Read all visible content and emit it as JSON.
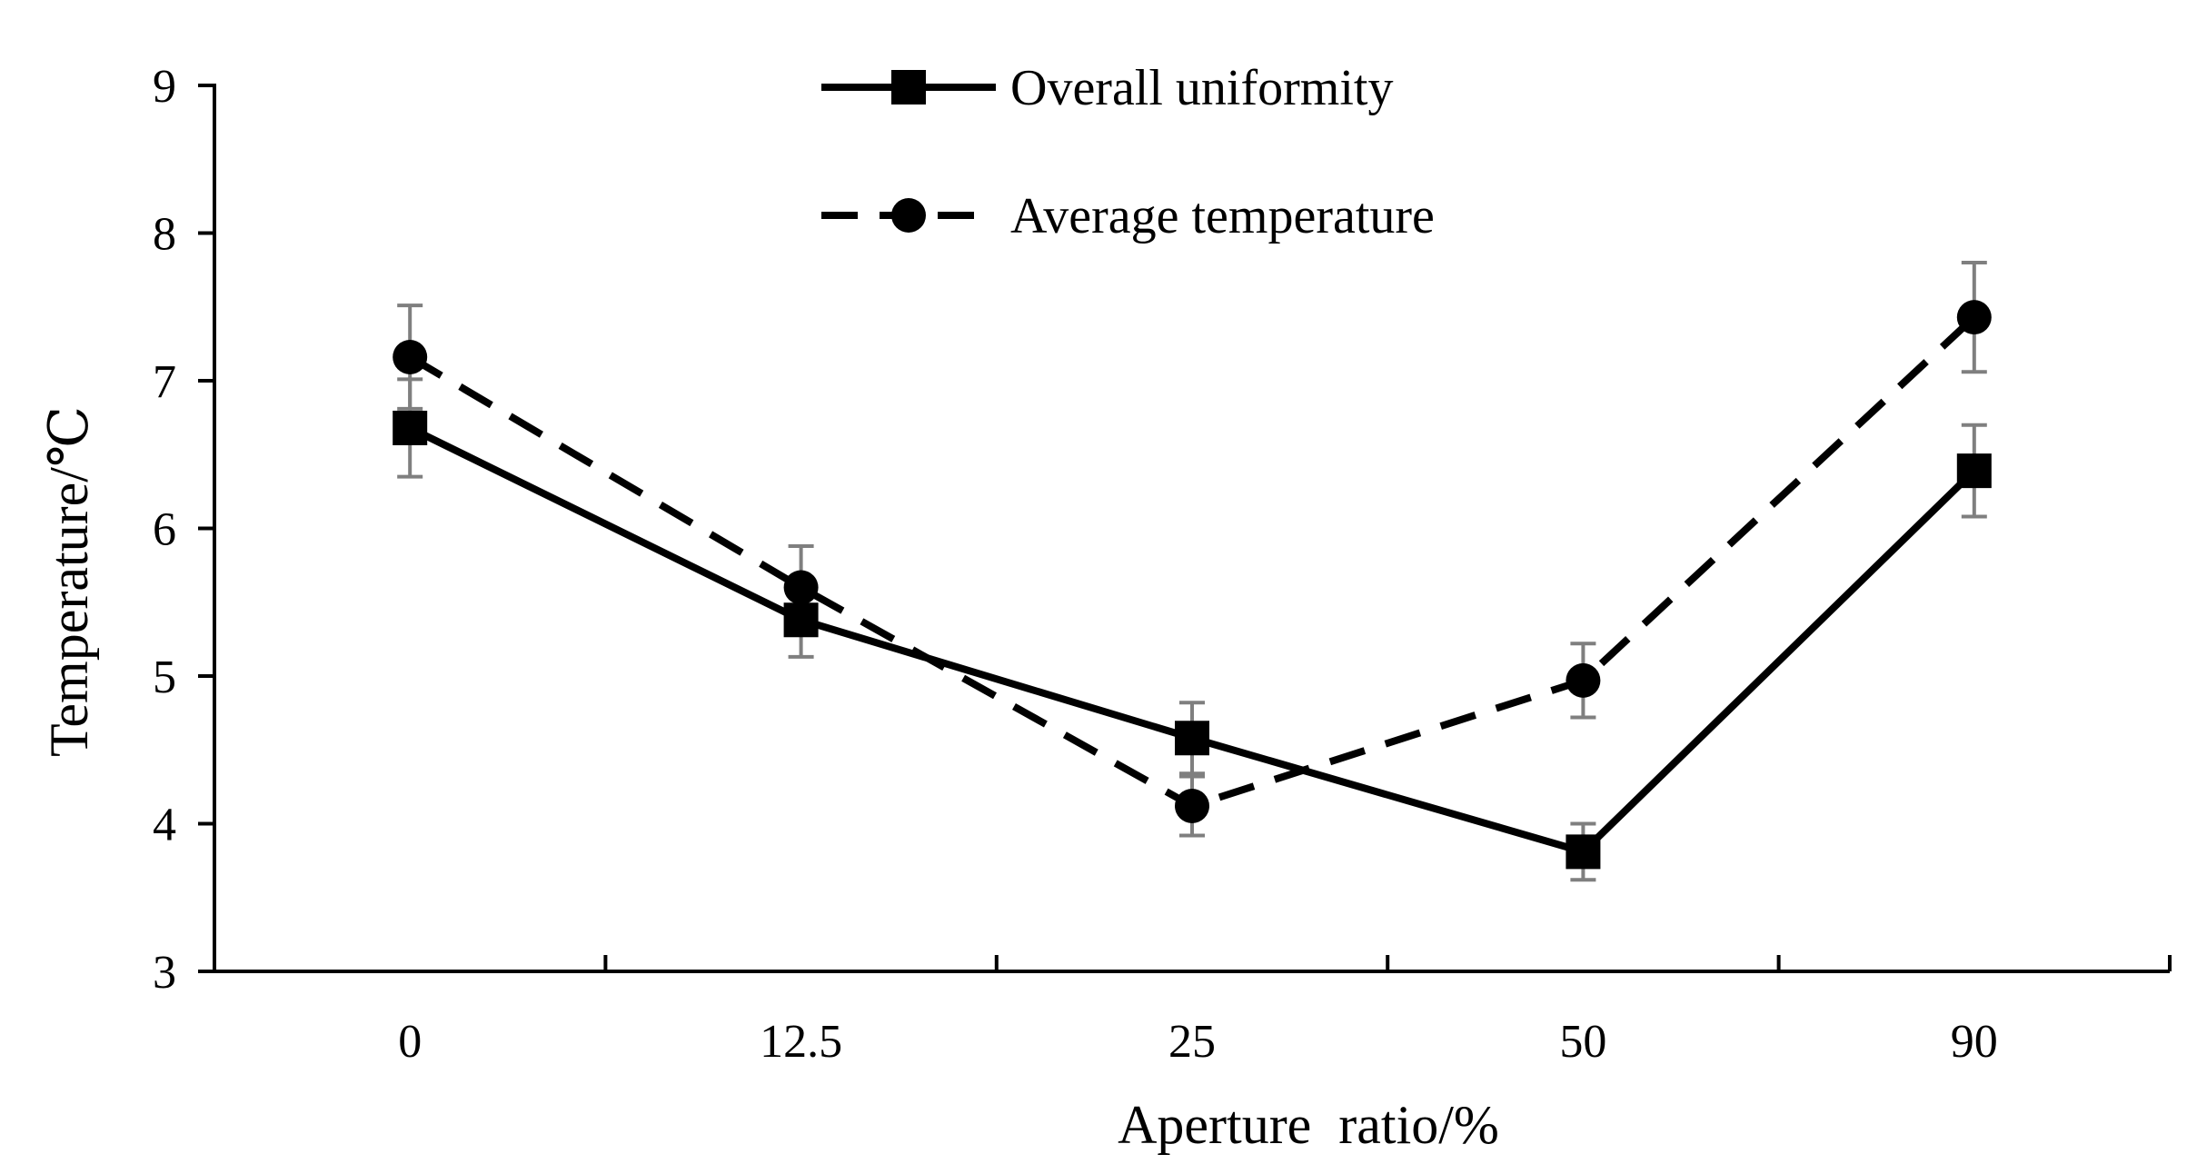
{
  "chart_data": {
    "type": "line",
    "title": "",
    "xlabel": "Aperture  ratio/%",
    "ylabel": "Temperature/℃",
    "categories": [
      "0",
      "12.5",
      "25",
      "50",
      "90"
    ],
    "ylim": [
      3,
      9
    ],
    "yticks": [
      "3",
      "4",
      "5",
      "6",
      "7",
      "8",
      "9"
    ],
    "legend_position": "top-center",
    "grid": false,
    "series": [
      {
        "name": "Overall uniformity",
        "line_style": "solid",
        "marker": "square",
        "values": [
          6.68,
          5.38,
          4.58,
          3.81,
          6.39
        ],
        "errors": [
          0.33,
          0.25,
          0.24,
          0.19,
          0.31
        ]
      },
      {
        "name": "Average temperature",
        "line_style": "dashed",
        "marker": "circle",
        "values": [
          7.16,
          5.6,
          4.12,
          4.97,
          7.43
        ],
        "errors": [
          0.35,
          0.28,
          0.2,
          0.25,
          0.37
        ]
      }
    ]
  }
}
